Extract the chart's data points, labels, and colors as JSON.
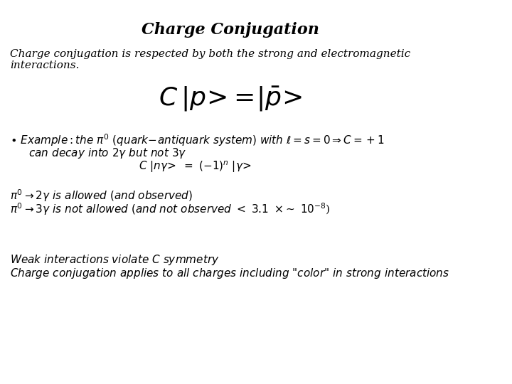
{
  "title": "Charge Conjugation",
  "background_color": "#ffffff",
  "text_color": "#000000",
  "figsize": [
    7.2,
    5.4
  ],
  "dpi": 100
}
